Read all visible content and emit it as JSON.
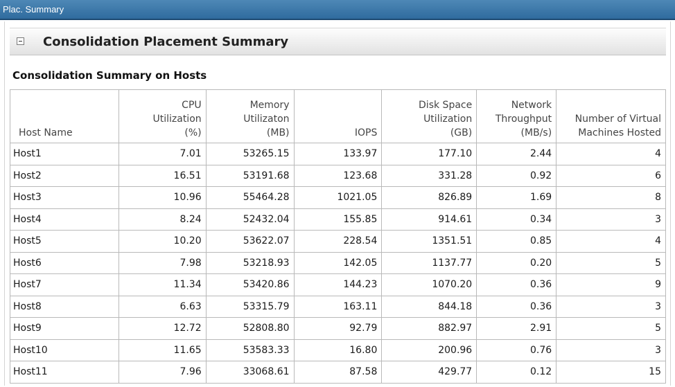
{
  "window": {
    "title": "Plac. Summary"
  },
  "section": {
    "title": "Consolidation Placement Summary"
  },
  "subtitle": "Consolidation Summary on Hosts",
  "table": {
    "headers": [
      [
        "Host Name"
      ],
      [
        "CPU",
        "Utilization",
        "(%)"
      ],
      [
        "Memory",
        "Utilizaton",
        "(MB)"
      ],
      [
        "IOPS"
      ],
      [
        "Disk Space",
        "Utilization",
        "(GB)"
      ],
      [
        "Network",
        "Throughput",
        "(MB/s)"
      ],
      [
        "Number of Virtual",
        "Machines Hosted"
      ]
    ],
    "rows": [
      [
        "Host1",
        "7.01",
        "53265.15",
        "133.97",
        "177.10",
        "2.44",
        "4"
      ],
      [
        "Host2",
        "16.51",
        "53191.68",
        "123.68",
        "331.28",
        "0.92",
        "6"
      ],
      [
        "Host3",
        "10.96",
        "55464.28",
        "1021.05",
        "826.89",
        "1.69",
        "8"
      ],
      [
        "Host4",
        "8.24",
        "52432.04",
        "155.85",
        "914.61",
        "0.34",
        "3"
      ],
      [
        "Host5",
        "10.20",
        "53622.07",
        "228.54",
        "1351.51",
        "0.85",
        "4"
      ],
      [
        "Host6",
        "7.98",
        "53218.93",
        "142.05",
        "1137.77",
        "0.20",
        "5"
      ],
      [
        "Host7",
        "11.34",
        "53420.86",
        "144.23",
        "1070.20",
        "0.36",
        "9"
      ],
      [
        "Host8",
        "6.63",
        "53315.79",
        "163.11",
        "844.18",
        "0.36",
        "3"
      ],
      [
        "Host9",
        "12.72",
        "52808.80",
        "92.79",
        "882.97",
        "2.91",
        "5"
      ],
      [
        "Host10",
        "11.65",
        "53583.33",
        "16.80",
        "200.96",
        "0.76",
        "3"
      ],
      [
        "Host11",
        "7.96",
        "33068.61",
        "87.58",
        "429.77",
        "0.12",
        "15"
      ]
    ]
  },
  "icons": {
    "collapse": "minus-box-icon"
  }
}
